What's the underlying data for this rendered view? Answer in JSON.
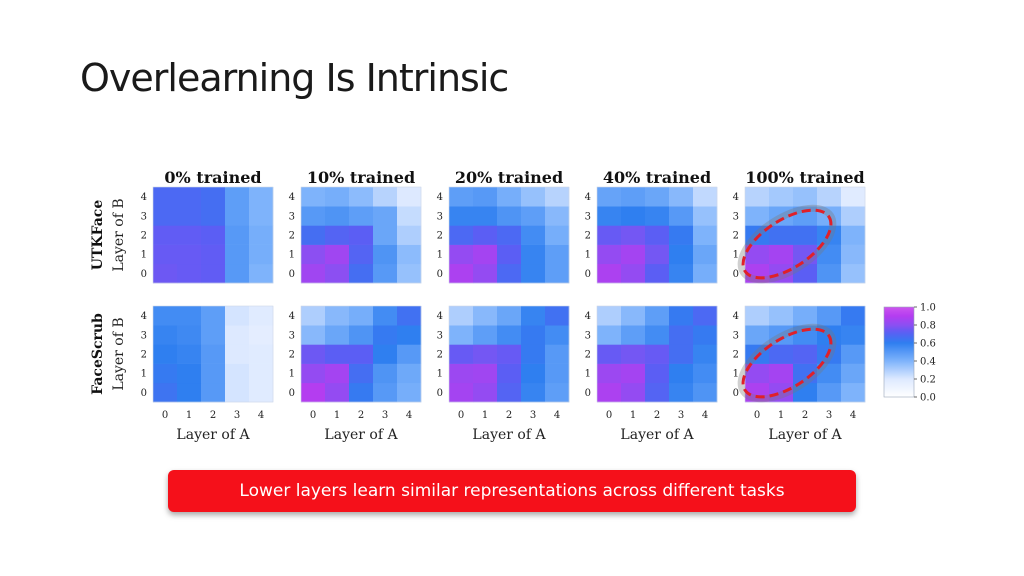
{
  "slide": {
    "title": "Overlearning Is Intrinsic",
    "callout": "Lower layers learn similar representations across different tasks"
  },
  "colors": {
    "callout_bg": "#f5101a",
    "highlight_ellipse": "#e0202a",
    "scale_low": "#ffffff",
    "scale_mid": "#2f7ff0",
    "scale_high": "#c23cf2"
  },
  "chart_data": {
    "type": "heatmap",
    "col_titles": [
      "0% trained",
      "10% trained",
      "20% trained",
      "40% trained",
      "100% trained"
    ],
    "row_titles": [
      "UTKFace",
      "FaceScrub"
    ],
    "ylabel": "Layer of B",
    "xlabel": "Layer of A",
    "x_ticks": [
      "0",
      "1",
      "2",
      "3",
      "4"
    ],
    "y_ticks": [
      "0",
      "1",
      "2",
      "3",
      "4"
    ],
    "colorbar": {
      "range": [
        0.0,
        1.0
      ],
      "ticks": [
        "0.0",
        "0.2",
        "0.4",
        "0.6",
        "0.8",
        "1.0"
      ]
    },
    "highlighted_panels": [
      [
        0,
        4
      ],
      [
        1,
        4
      ]
    ],
    "panels": [
      [
        [
          [
            0.75,
            0.74,
            0.73,
            0.5,
            0.4
          ],
          [
            0.74,
            0.74,
            0.73,
            0.5,
            0.42
          ],
          [
            0.73,
            0.73,
            0.72,
            0.5,
            0.42
          ],
          [
            0.68,
            0.68,
            0.66,
            0.48,
            0.4
          ],
          [
            0.68,
            0.68,
            0.66,
            0.48,
            0.4
          ]
        ],
        [
          [
            0.85,
            0.8,
            0.66,
            0.5,
            0.35
          ],
          [
            0.8,
            0.85,
            0.7,
            0.52,
            0.37
          ],
          [
            0.66,
            0.7,
            0.72,
            0.45,
            0.3
          ],
          [
            0.5,
            0.52,
            0.48,
            0.45,
            0.25
          ],
          [
            0.4,
            0.42,
            0.37,
            0.28,
            0.2
          ]
        ],
        [
          [
            0.88,
            0.82,
            0.68,
            0.58,
            0.48
          ],
          [
            0.82,
            0.86,
            0.72,
            0.58,
            0.48
          ],
          [
            0.68,
            0.72,
            0.68,
            0.55,
            0.42
          ],
          [
            0.58,
            0.58,
            0.52,
            0.48,
            0.38
          ],
          [
            0.48,
            0.5,
            0.42,
            0.35,
            0.28
          ]
        ],
        [
          [
            0.88,
            0.82,
            0.72,
            0.58,
            0.42
          ],
          [
            0.82,
            0.86,
            0.76,
            0.6,
            0.45
          ],
          [
            0.74,
            0.76,
            0.72,
            0.62,
            0.4
          ],
          [
            0.58,
            0.6,
            0.58,
            0.5,
            0.35
          ],
          [
            0.46,
            0.48,
            0.45,
            0.38,
            0.26
          ]
        ],
        [
          [
            0.88,
            0.82,
            0.72,
            0.52,
            0.35
          ],
          [
            0.82,
            0.86,
            0.76,
            0.55,
            0.38
          ],
          [
            0.62,
            0.65,
            0.65,
            0.58,
            0.4
          ],
          [
            0.4,
            0.45,
            0.48,
            0.42,
            0.3
          ],
          [
            0.28,
            0.32,
            0.35,
            0.28,
            0.18
          ]
        ]
      ],
      [
        [
          [
            0.64,
            0.6,
            0.5,
            0.22,
            0.18
          ],
          [
            0.62,
            0.6,
            0.5,
            0.22,
            0.18
          ],
          [
            0.6,
            0.58,
            0.5,
            0.2,
            0.18
          ],
          [
            0.58,
            0.56,
            0.48,
            0.2,
            0.16
          ],
          [
            0.55,
            0.55,
            0.48,
            0.22,
            0.18
          ]
        ],
        [
          [
            0.9,
            0.82,
            0.62,
            0.5,
            0.42
          ],
          [
            0.82,
            0.86,
            0.66,
            0.52,
            0.44
          ],
          [
            0.75,
            0.72,
            0.72,
            0.6,
            0.5
          ],
          [
            0.38,
            0.45,
            0.52,
            0.62,
            0.6
          ],
          [
            0.3,
            0.38,
            0.42,
            0.55,
            0.65
          ]
        ],
        [
          [
            0.86,
            0.82,
            0.7,
            0.58,
            0.48
          ],
          [
            0.84,
            0.85,
            0.72,
            0.6,
            0.5
          ],
          [
            0.74,
            0.76,
            0.74,
            0.62,
            0.5
          ],
          [
            0.4,
            0.48,
            0.55,
            0.62,
            0.55
          ],
          [
            0.3,
            0.38,
            0.45,
            0.58,
            0.65
          ]
        ],
        [
          [
            0.88,
            0.82,
            0.7,
            0.58,
            0.52
          ],
          [
            0.84,
            0.86,
            0.72,
            0.6,
            0.55
          ],
          [
            0.74,
            0.76,
            0.74,
            0.66,
            0.58
          ],
          [
            0.4,
            0.48,
            0.55,
            0.66,
            0.62
          ],
          [
            0.3,
            0.38,
            0.48,
            0.62,
            0.68
          ]
        ],
        [
          [
            0.88,
            0.82,
            0.6,
            0.5,
            0.4
          ],
          [
            0.82,
            0.86,
            0.65,
            0.55,
            0.45
          ],
          [
            0.62,
            0.68,
            0.7,
            0.62,
            0.5
          ],
          [
            0.45,
            0.5,
            0.55,
            0.6,
            0.58
          ],
          [
            0.3,
            0.35,
            0.42,
            0.5,
            0.62
          ]
        ]
      ]
    ]
  }
}
